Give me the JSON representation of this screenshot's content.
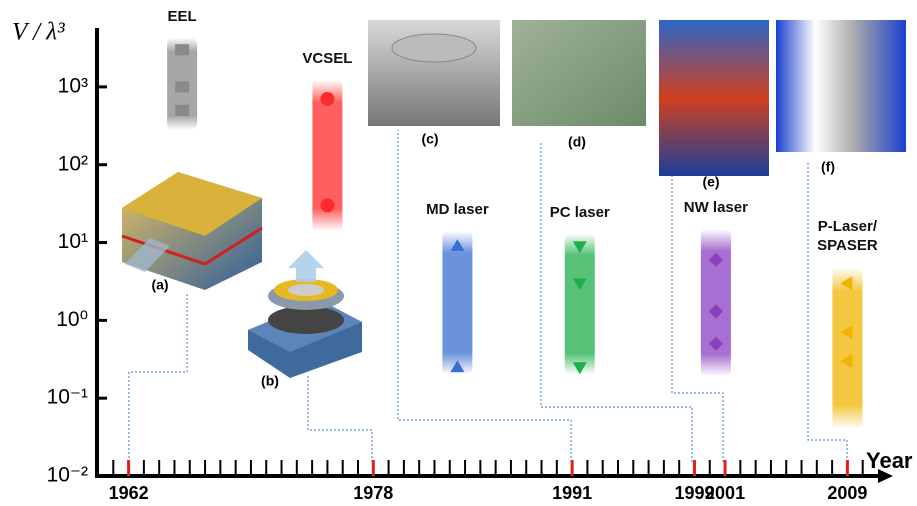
{
  "chart_data": {
    "type": "scatter",
    "y_label": "V / λ³",
    "x_label": "Year",
    "log_y": true,
    "ylim": [
      0.01,
      5000
    ],
    "yticks": [
      {
        "value": 0.01,
        "label": "10⁻²"
      },
      {
        "value": 0.1,
        "label": "10⁻¹"
      },
      {
        "value": 1,
        "label": "10⁰"
      },
      {
        "value": 10,
        "label": "10¹"
      },
      {
        "value": 100,
        "label": "10²"
      },
      {
        "value": 1000,
        "label": "10³"
      }
    ],
    "xlim": [
      1960,
      2011
    ],
    "xticks": [
      1962,
      1978,
      1991,
      1999,
      2001,
      2009
    ],
    "xminorticks": [
      1961,
      1963,
      1964,
      1965,
      1966,
      1967,
      1968,
      1969,
      1970,
      1971,
      1972,
      1973,
      1974,
      1975,
      1976,
      1977,
      1979,
      1980,
      1981,
      1982,
      1983,
      1984,
      1985,
      1986,
      1987,
      1988,
      1989,
      1990,
      1992,
      1993,
      1994,
      1995,
      1996,
      1997,
      1998,
      2000,
      2002,
      2003,
      2004,
      2005,
      2006,
      2007,
      2008,
      2010
    ],
    "tick_color": "#e02020",
    "series": [
      {
        "name": "EEL",
        "color": "#8a8a8a",
        "marker": "square",
        "x": 1965.5,
        "range": [
          280,
          4300
        ],
        "values": [
          3000,
          1000,
          500
        ]
      },
      {
        "name": "VCSEL",
        "color": "#ff2a2a",
        "marker": "circle",
        "x": 1975,
        "range": [
          14,
          1230
        ],
        "values": [
          700,
          30
        ]
      },
      {
        "name": "MD laser",
        "color": "#3a6fd0",
        "marker": "triangle-up",
        "x": 1983.5,
        "range": [
          0.2,
          14
        ],
        "values": [
          9,
          0.25
        ]
      },
      {
        "name": "PC laser",
        "color": "#1fae4a",
        "marker": "triangle-down",
        "x": 1991.5,
        "range": [
          0.2,
          13
        ],
        "values": [
          9,
          3,
          0.25
        ]
      },
      {
        "name": "NW laser",
        "color": "#8a3fc0",
        "marker": "diamond",
        "x": 2000.4,
        "range": [
          0.19,
          15
        ],
        "values": [
          6,
          1.3,
          0.5
        ]
      },
      {
        "name": "P-Laser/\nSPASER",
        "color": "#f0b400",
        "marker": "triangle-left",
        "x": 2009,
        "range": [
          0.04,
          4.8
        ],
        "values": [
          3,
          0.7,
          0.3
        ]
      }
    ],
    "annotations": [
      "(a)",
      "(b)",
      "(c)",
      "(d)",
      "(e)",
      "(f)"
    ]
  }
}
